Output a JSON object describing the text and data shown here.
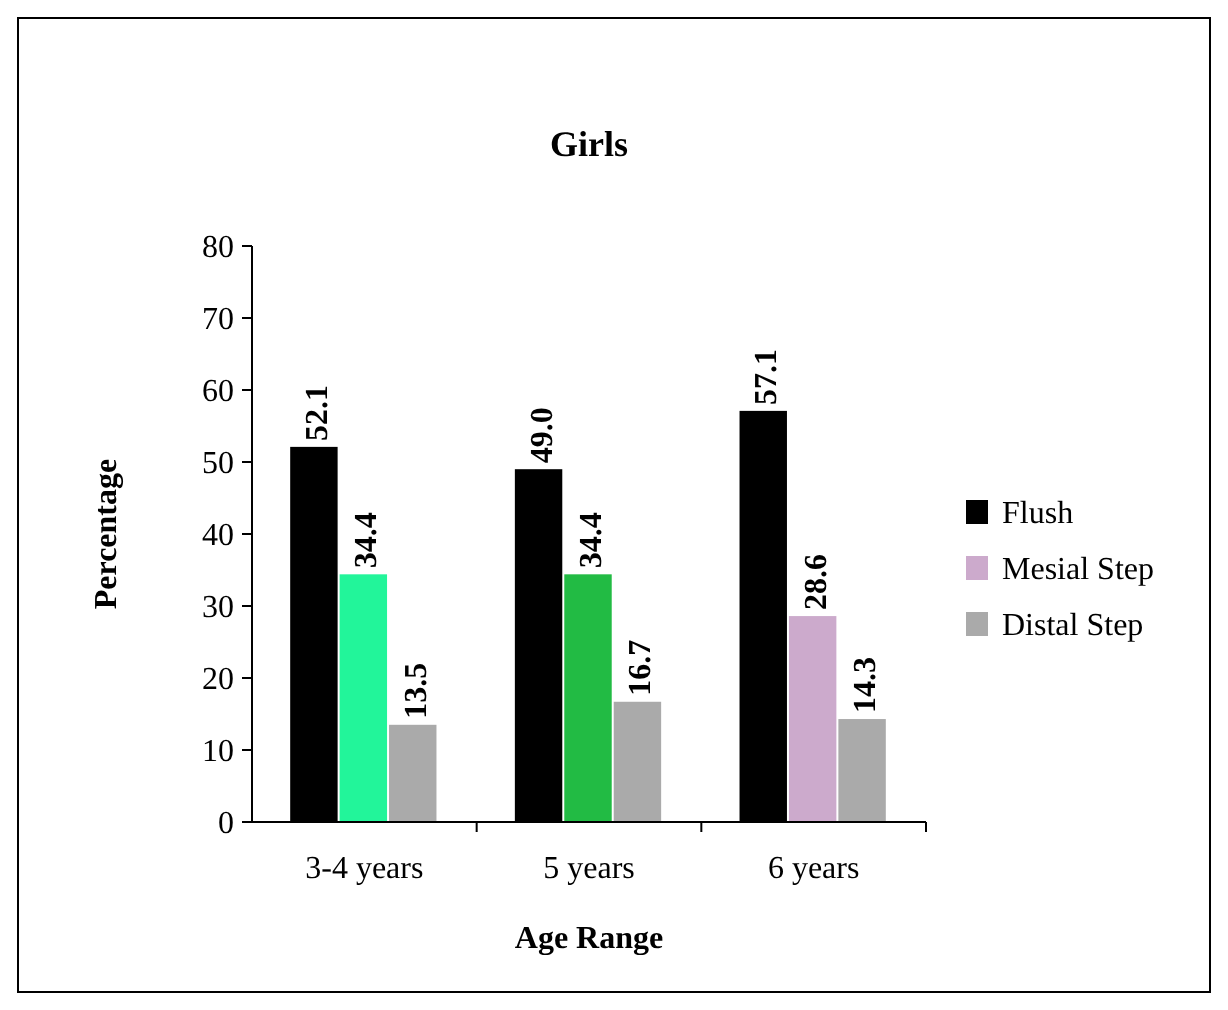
{
  "chart_data": {
    "type": "bar",
    "title": "Girls",
    "xlabel": "Age Range",
    "ylabel": "Percentage",
    "categories": [
      "3-4 years",
      "5 years",
      "6 years"
    ],
    "series": [
      {
        "name": "Flush",
        "color": "#000000",
        "values": [
          52.1,
          49.0,
          57.1
        ],
        "value_labels": [
          "52.1",
          "49.0",
          "57.1"
        ]
      },
      {
        "name": "Mesial Step",
        "color": "#ccaacc",
        "colors": [
          "#22f59a",
          "#22bb44",
          "#ccaacc"
        ],
        "values": [
          34.4,
          34.4,
          28.6
        ],
        "value_labels": [
          "34.4",
          "34.4",
          "28.6"
        ]
      },
      {
        "name": "Distal Step",
        "color": "#aaaaaa",
        "values": [
          13.5,
          16.7,
          14.3
        ],
        "value_labels": [
          "13.5",
          "16.7",
          "14.3"
        ]
      }
    ],
    "ylim": [
      0,
      80
    ],
    "yticks": [
      0,
      10,
      20,
      30,
      40,
      50,
      60,
      70,
      80
    ],
    "grid": false,
    "legend": "right"
  }
}
